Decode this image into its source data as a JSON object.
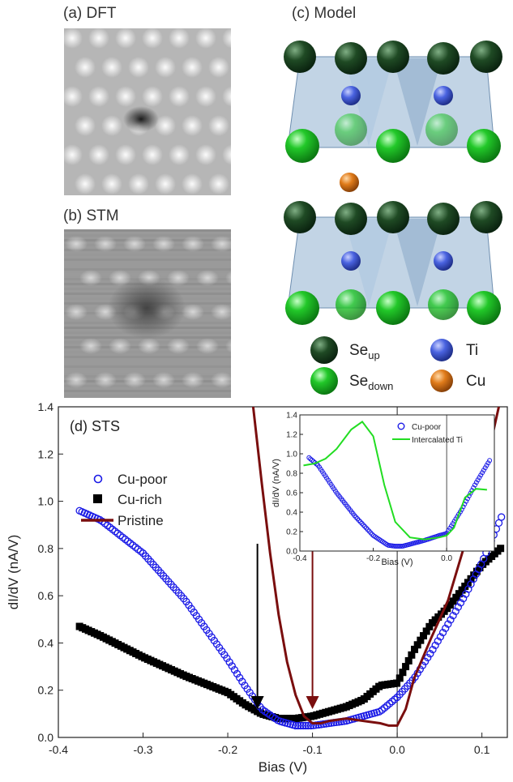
{
  "panels": {
    "a": "(a) DFT",
    "b": "(b) STM",
    "c": "(c) Model",
    "d": "(d) STS"
  },
  "model_legend": {
    "se_up": "Se",
    "se_up_sub": "up",
    "se_down": "Se",
    "se_down_sub": "down",
    "ti": "Ti",
    "cu": "Cu"
  },
  "colors": {
    "se_up": "#1f4a24",
    "se_down": "#22c829",
    "ti": "#4a63e0",
    "cu": "#e07b1a",
    "cu_poor": "#1a1ae6",
    "cu_rich": "#000000",
    "pristine": "#7a0e0e",
    "intercalated_ti": "#22dd22"
  },
  "chart_data": [
    {
      "type": "scatter",
      "title": "",
      "xlabel": "Bias (V)",
      "ylabel": "dI/dV (nA/V)",
      "xlim": [
        -0.4,
        0.13
      ],
      "ylim": [
        0.0,
        1.4
      ],
      "xticks": [
        -0.4,
        -0.3,
        -0.2,
        -0.1,
        0.0,
        0.1
      ],
      "xtick_labels": [
        "-0.4",
        "-0.3",
        "-0.2",
        "-0.1",
        "0.0",
        "0.1"
      ],
      "yticks": [
        0.0,
        0.2,
        0.4,
        0.6,
        0.8,
        1.0,
        1.2,
        1.4
      ],
      "ytick_labels": [
        "0.0",
        "0.2",
        "0.4",
        "0.6",
        "0.8",
        "1.0",
        "1.2",
        "1.4"
      ],
      "legend_position": "left",
      "series": [
        {
          "name": "Cu-poor",
          "marker": "open-circle",
          "x": [
            -0.375,
            -0.35,
            -0.3,
            -0.25,
            -0.2,
            -0.18,
            -0.16,
            -0.14,
            -0.12,
            -0.1,
            -0.08,
            -0.06,
            -0.04,
            -0.02,
            0.0,
            0.02,
            0.04,
            0.06,
            0.08,
            0.1,
            0.125
          ],
          "y": [
            0.96,
            0.92,
            0.78,
            0.58,
            0.33,
            0.22,
            0.12,
            0.07,
            0.05,
            0.05,
            0.06,
            0.07,
            0.09,
            0.11,
            0.17,
            0.25,
            0.36,
            0.48,
            0.6,
            0.74,
            0.95
          ]
        },
        {
          "name": "Cu-rich",
          "marker": "filled-square",
          "x": [
            -0.375,
            -0.35,
            -0.3,
            -0.25,
            -0.2,
            -0.18,
            -0.16,
            -0.14,
            -0.12,
            -0.1,
            -0.08,
            -0.06,
            -0.04,
            -0.02,
            0.0,
            0.02,
            0.04,
            0.06,
            0.08,
            0.1,
            0.125
          ],
          "y": [
            0.47,
            0.43,
            0.34,
            0.26,
            0.19,
            0.14,
            0.1,
            0.08,
            0.08,
            0.09,
            0.11,
            0.13,
            0.16,
            0.22,
            0.23,
            0.37,
            0.48,
            0.55,
            0.64,
            0.73,
            0.81
          ]
        },
        {
          "name": "Pristine",
          "marker": "line",
          "x": [
            -0.17,
            -0.16,
            -0.15,
            -0.14,
            -0.13,
            -0.12,
            -0.11,
            -0.1,
            -0.09,
            -0.08,
            -0.06,
            -0.04,
            -0.02,
            -0.01,
            0.0,
            0.01,
            0.02,
            0.04,
            0.06,
            0.08,
            0.1,
            0.12
          ],
          "y": [
            1.4,
            1.08,
            0.78,
            0.52,
            0.32,
            0.18,
            0.09,
            0.06,
            0.06,
            0.07,
            0.08,
            0.07,
            0.06,
            0.05,
            0.05,
            0.12,
            0.25,
            0.42,
            0.58,
            0.82,
            1.08,
            1.4
          ]
        }
      ],
      "arrows_at_x": [
        -0.165,
        -0.1
      ]
    },
    {
      "type": "scatter",
      "title": "",
      "xlabel": "Bias (V)",
      "ylabel": "dI/dV (nA/V)",
      "xlim": [
        -0.4,
        0.13
      ],
      "ylim": [
        0.0,
        1.4
      ],
      "xticks": [
        -0.4,
        -0.2,
        0.0
      ],
      "xtick_labels": [
        "-0.4",
        "-0.2",
        "0.0"
      ],
      "yticks": [
        0.0,
        0.2,
        0.4,
        0.6,
        0.8,
        1.0,
        1.2,
        1.4
      ],
      "ytick_labels": [
        "0.0",
        "0.2",
        "0.4",
        "0.6",
        "0.8",
        "1.0",
        "1.2",
        "1.4"
      ],
      "legend_position": "top-right",
      "series": [
        {
          "name": "Cu-poor",
          "marker": "open-circle",
          "x": [
            -0.375,
            -0.35,
            -0.3,
            -0.25,
            -0.2,
            -0.16,
            -0.14,
            -0.12,
            -0.1,
            -0.06,
            -0.02,
            0.0,
            0.04,
            0.08,
            0.12
          ],
          "y": [
            0.96,
            0.88,
            0.6,
            0.36,
            0.16,
            0.06,
            0.05,
            0.05,
            0.07,
            0.11,
            0.16,
            0.18,
            0.42,
            0.7,
            0.95
          ]
        },
        {
          "name": "Intercalated Ti",
          "marker": "line",
          "x": [
            -0.39,
            -0.36,
            -0.33,
            -0.3,
            -0.26,
            -0.23,
            -0.2,
            -0.17,
            -0.14,
            -0.1,
            -0.06,
            -0.02,
            0.0,
            0.02,
            0.05,
            0.08,
            0.11
          ],
          "y": [
            0.88,
            0.9,
            0.95,
            1.05,
            1.25,
            1.33,
            1.18,
            0.68,
            0.3,
            0.14,
            0.12,
            0.14,
            0.16,
            0.24,
            0.55,
            0.64,
            0.63
          ]
        }
      ]
    }
  ]
}
